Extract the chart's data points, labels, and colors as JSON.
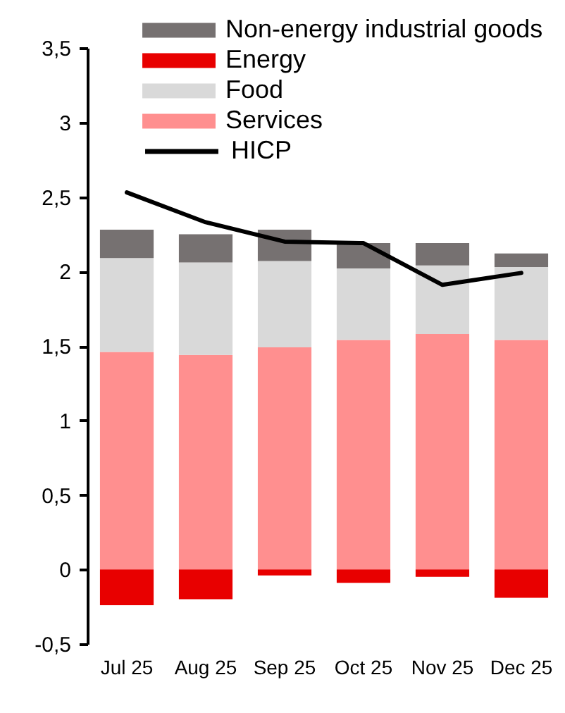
{
  "chart_data": {
    "type": "bar",
    "stacked": true,
    "categories": [
      "Jul 25",
      "Aug 25",
      "Sep 25",
      "Oct 25",
      "Nov 25",
      "Dec 25"
    ],
    "series": [
      {
        "name": "Services",
        "color": "#ff8f8f",
        "values": [
          1.46,
          1.44,
          1.49,
          1.54,
          1.58,
          1.54
        ]
      },
      {
        "name": "Food",
        "color": "#d9d9d9",
        "values": [
          0.63,
          0.62,
          0.58,
          0.48,
          0.46,
          0.49
        ]
      },
      {
        "name": "Energy",
        "color": "#e80000",
        "values": [
          -0.24,
          -0.2,
          -0.04,
          -0.09,
          -0.05,
          -0.19
        ]
      },
      {
        "name": "Non-energy industrial goods",
        "color": "#767171",
        "values": [
          0.19,
          0.19,
          0.21,
          0.17,
          0.15,
          0.09
        ]
      },
      {
        "name": "HICP",
        "type": "line",
        "color": "#000000",
        "values": [
          2.53,
          2.33,
          2.2,
          2.19,
          1.91,
          1.99
        ]
      }
    ],
    "ylim": [
      -0.5,
      3.5
    ],
    "yticks": [
      {
        "value": -0.5,
        "label": "-0,5"
      },
      0,
      {
        "value": 0.5,
        "label": "0,5"
      },
      1,
      {
        "value": 1.5,
        "label": "1,5"
      },
      2,
      {
        "value": 2.5,
        "label": "2,5"
      },
      3,
      {
        "value": 3.5,
        "label": "3,5"
      }
    ],
    "legend": "top right",
    "grid": false,
    "marker": "none",
    "line_style": "solid"
  }
}
